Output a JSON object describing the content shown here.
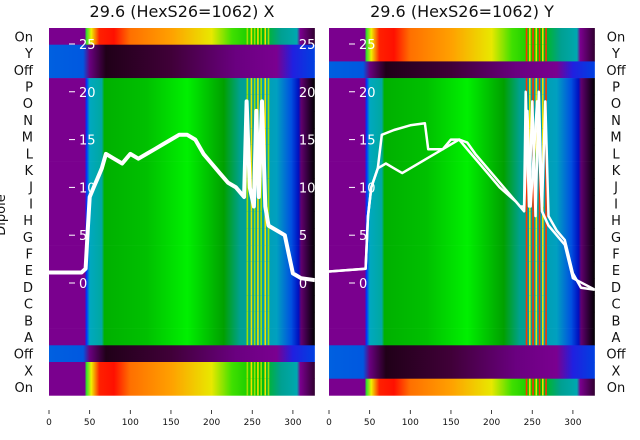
{
  "chart_data": {
    "type": "heatmap",
    "ylabel": "Dipole",
    "row_labels": [
      "On",
      "Y",
      "Off",
      "P",
      "O",
      "N",
      "M",
      "L",
      "K",
      "J",
      "I",
      "H",
      "G",
      "F",
      "E",
      "D",
      "C",
      "B",
      "A",
      "Off",
      "X",
      "On"
    ],
    "x_ticks": [
      0,
      50,
      100,
      150,
      200,
      250,
      300
    ],
    "xlim": [
      0,
      327
    ],
    "overlay_y_ticks": [
      0,
      5,
      10,
      15,
      20,
      25
    ],
    "overlay_ylim": [
      -2.5,
      26.5
    ],
    "panels": [
      {
        "title": "29.6 (HexS26=1062) X",
        "row_profiles": [
          "spectrum",
          "dark",
          "dark",
          "green",
          "green",
          "green",
          "green",
          "green",
          "green",
          "green",
          "green",
          "green",
          "green",
          "green",
          "green",
          "green",
          "green",
          "green",
          "green",
          "dark",
          "spectrum",
          "spectrum"
        ],
        "stripes": [
          243,
          248,
          252,
          256,
          260,
          265,
          269
        ],
        "series": [
          {
            "name": "trace",
            "points": [
              [
                0,
                1.1
              ],
              [
                40,
                1.1
              ],
              [
                45,
                1.5
              ],
              [
                48,
                6
              ],
              [
                50,
                9
              ],
              [
                55,
                10
              ],
              [
                60,
                11
              ],
              [
                65,
                12
              ],
              [
                70,
                13.5
              ],
              [
                80,
                13
              ],
              [
                90,
                12.5
              ],
              [
                100,
                13.5
              ],
              [
                110,
                13
              ],
              [
                120,
                13.5
              ],
              [
                130,
                14
              ],
              [
                140,
                14.5
              ],
              [
                150,
                15
              ],
              [
                160,
                15.5
              ],
              [
                170,
                15.5
              ],
              [
                180,
                15
              ],
              [
                190,
                13.5
              ],
              [
                200,
                12.5
              ],
              [
                210,
                11.5
              ],
              [
                220,
                10.5
              ],
              [
                230,
                10
              ],
              [
                240,
                9
              ],
              [
                243,
                19
              ],
              [
                247,
                10
              ],
              [
                252,
                8
              ],
              [
                255,
                18
              ],
              [
                258,
                9
              ],
              [
                262,
                19
              ],
              [
                266,
                8
              ],
              [
                270,
                6
              ],
              [
                280,
                5.5
              ],
              [
                290,
                5
              ],
              [
                295,
                3
              ],
              [
                300,
                1
              ],
              [
                310,
                0.5
              ],
              [
                327,
                0.3
              ]
            ]
          }
        ]
      },
      {
        "title": "29.6 (HexS26=1062) Y",
        "row_profiles": [
          "spectrum",
          "spectrum",
          "dark",
          "green",
          "green",
          "green",
          "green",
          "green",
          "green",
          "green",
          "green",
          "green",
          "green",
          "green",
          "green",
          "green",
          "green",
          "green",
          "green",
          "dark",
          "dark",
          "spectrum"
        ],
        "stripes": [
          242,
          246,
          250,
          254,
          258,
          262,
          266
        ],
        "series": [
          {
            "name": "trace-a",
            "points": [
              [
                0,
                1.2
              ],
              [
                45,
                1.5
              ],
              [
                48,
                7
              ],
              [
                52,
                10
              ],
              [
                60,
                12
              ],
              [
                70,
                12.5
              ],
              [
                80,
                12
              ],
              [
                90,
                11.5
              ],
              [
                100,
                12
              ],
              [
                120,
                13
              ],
              [
                140,
                14
              ],
              [
                150,
                15
              ],
              [
                160,
                15
              ],
              [
                170,
                14.7
              ],
              [
                180,
                13.5
              ],
              [
                200,
                11.5
              ],
              [
                220,
                9.5
              ],
              [
                235,
                8
              ],
              [
                240,
                8
              ],
              [
                242,
                20
              ],
              [
                246,
                8
              ],
              [
                250,
                19
              ],
              [
                254,
                7
              ],
              [
                258,
                20
              ],
              [
                262,
                8
              ],
              [
                266,
                19
              ],
              [
                270,
                7
              ],
              [
                280,
                5.5
              ],
              [
                290,
                4.5
              ],
              [
                300,
                1
              ],
              [
                310,
                -0.5
              ],
              [
                327,
                -0.7
              ]
            ]
          },
          {
            "name": "trace-b",
            "points": [
              [
                0,
                1.2
              ],
              [
                45,
                1.5
              ],
              [
                48,
                7
              ],
              [
                52,
                10
              ],
              [
                60,
                12
              ],
              [
                65,
                15.5
              ],
              [
                80,
                16
              ],
              [
                100,
                16.5
              ],
              [
                118,
                16.7
              ],
              [
                122,
                14
              ],
              [
                140,
                14
              ],
              [
                160,
                15
              ],
              [
                170,
                14
              ],
              [
                190,
                12
              ],
              [
                210,
                10
              ],
              [
                230,
                8.5
              ],
              [
                240,
                7.5
              ],
              [
                244,
                18
              ],
              [
                248,
                8
              ],
              [
                256,
                19
              ],
              [
                262,
                7.5
              ],
              [
                270,
                6
              ],
              [
                290,
                4
              ],
              [
                300,
                0.5
              ],
              [
                327,
                -0.7
              ]
            ]
          }
        ]
      }
    ]
  }
}
